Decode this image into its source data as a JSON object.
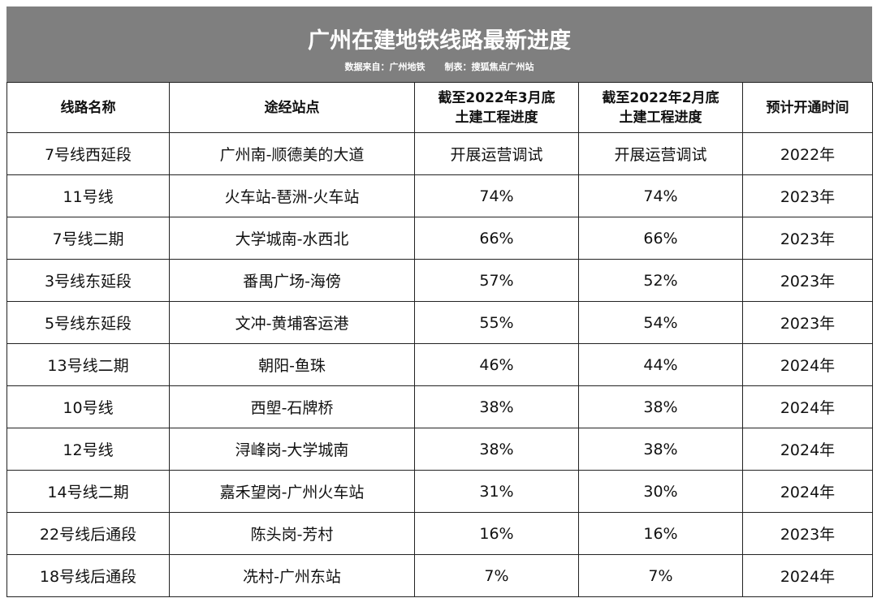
{
  "header": {
    "title": "广州在建地铁线路最新进度",
    "source": "数据来自：广州地铁",
    "author": "制表：搜狐焦点广州站"
  },
  "table": {
    "columns": [
      [
        "线路名称"
      ],
      [
        "途经站点"
      ],
      [
        "截至2022年3月底",
        "土建工程进度"
      ],
      [
        "截至2022年2月底",
        "土建工程进度"
      ],
      [
        "预计开通时间"
      ]
    ],
    "rows": [
      [
        "7号线西延段",
        "广州南-顺德美的大道",
        "开展运营调试",
        "开展运营调试",
        "2022年"
      ],
      [
        "11号线",
        "火车站-琶洲-火车站",
        "74%",
        "74%",
        "2023年"
      ],
      [
        "7号线二期",
        "大学城南-水西北",
        "66%",
        "66%",
        "2023年"
      ],
      [
        "3号线东延段",
        "番禺广场-海傍",
        "57%",
        "52%",
        "2023年"
      ],
      [
        "5号线东延段",
        "文冲-黄埔客运港",
        "55%",
        "54%",
        "2023年"
      ],
      [
        "13号线二期",
        "朝阳-鱼珠",
        "46%",
        "44%",
        "2024年"
      ],
      [
        "10号线",
        "西塱-石牌桥",
        "38%",
        "38%",
        "2024年"
      ],
      [
        "12号线",
        "浔峰岗-大学城南",
        "38%",
        "38%",
        "2024年"
      ],
      [
        "14号线二期",
        "嘉禾望岗-广州火车站",
        "31%",
        "30%",
        "2024年"
      ],
      [
        "22号线后通段",
        "陈头岗-芳村",
        "16%",
        "16%",
        "2023年"
      ],
      [
        "18号线后通段",
        "冼村-广州东站",
        "7%",
        "7%",
        "2024年"
      ]
    ]
  }
}
